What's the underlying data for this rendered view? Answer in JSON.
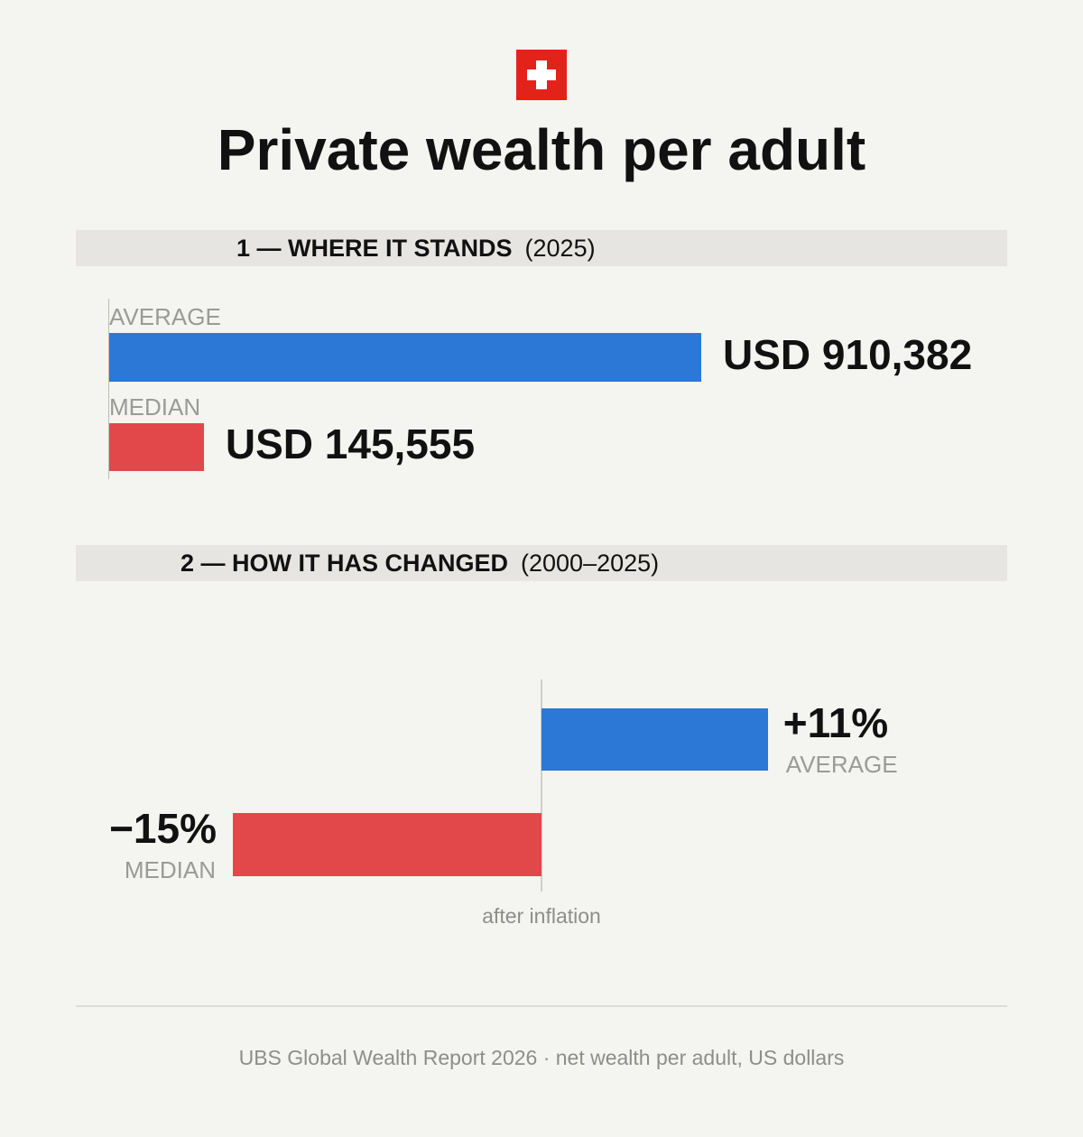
{
  "header": {
    "flag_icon": "swiss-flag-icon",
    "title": "Private wealth per adult"
  },
  "section1": {
    "heading": "1 — WHERE IT STANDS",
    "period": "(2025)"
  },
  "section2": {
    "heading": "2 — HOW IT HAS CHANGED",
    "period": "(2000–2025)",
    "note": "after inflation"
  },
  "chart_data": [
    {
      "type": "bar",
      "orientation": "horizontal",
      "categories": [
        "AVERAGE",
        "MEDIAN"
      ],
      "values": [
        910382,
        145555
      ],
      "value_labels": [
        "USD 910,382",
        "USD 145,555"
      ],
      "colors": [
        "#2b78d6",
        "#e2474a"
      ],
      "xlim": [
        0,
        910382
      ]
    },
    {
      "type": "bar",
      "orientation": "horizontal",
      "categories": [
        "AVERAGE",
        "MEDIAN"
      ],
      "values": [
        11,
        -15
      ],
      "value_labels": [
        "+11%",
        "−15%"
      ],
      "colors": [
        "#2b78d6",
        "#e2474a"
      ],
      "xlim": [
        -15,
        11
      ]
    }
  ],
  "footer": {
    "source": "UBS Global Wealth Report 2026 · net wealth per adult, US dollars"
  }
}
